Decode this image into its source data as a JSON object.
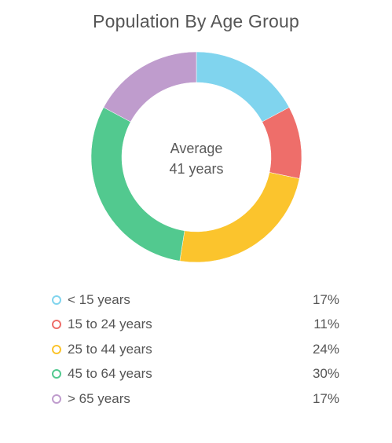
{
  "chart_data": {
    "type": "pie",
    "title": "Population By Age Group",
    "center": {
      "line1": "Average",
      "line2": "41 years"
    },
    "categories": [
      "< 15 years",
      "15 to 24 years",
      "25 to 44 years",
      "45 to 64 years",
      "> 65 years"
    ],
    "values": [
      17,
      11,
      24,
      30,
      17
    ],
    "value_labels": [
      "17%",
      "11%",
      "24%",
      "30%",
      "17%"
    ],
    "colors": [
      "#80d4ee",
      "#ee6e6a",
      "#fbc42d",
      "#52c98f",
      "#bf9ccd"
    ],
    "legend_position": "bottom"
  }
}
